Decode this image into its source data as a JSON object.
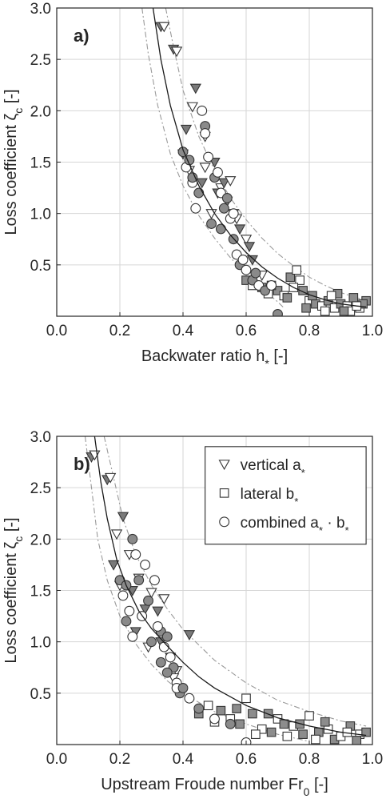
{
  "chart_data": [
    {
      "type": "scatter",
      "panel_label": "a)",
      "xlabel": "Backwater ratio h",
      "xlabel_sub": "*",
      "xlabel_unit": "[-]",
      "ylabel": "Loss coefficient ζ",
      "ylabel_sub": "c",
      "ylabel_unit": "[-]",
      "xlim": [
        0,
        1
      ],
      "ylim": [
        0,
        3
      ],
      "xticks": [
        "0.0",
        "0.2",
        "0.4",
        "0.6",
        "0.8",
        "1.0"
      ],
      "yticks": [
        "0.5",
        "1.0",
        "1.5",
        "2.0",
        "2.5",
        "3.0"
      ],
      "grid": true,
      "fit_curve": {
        "style": "solid black",
        "x": [
          0.305,
          0.33,
          0.36,
          0.4,
          0.45,
          0.5,
          0.55,
          0.6,
          0.65,
          0.7,
          0.75,
          0.8,
          0.85,
          0.9,
          0.95,
          0.98
        ],
        "y": [
          3.0,
          2.5,
          2.05,
          1.62,
          1.27,
          1.0,
          0.79,
          0.62,
          0.48,
          0.37,
          0.28,
          0.21,
          0.16,
          0.12,
          0.1,
          0.09
        ]
      },
      "bound_upper": {
        "style": "dash-dot grey",
        "x": [
          0.345,
          0.37,
          0.4,
          0.45,
          0.5,
          0.55,
          0.6,
          0.65,
          0.7,
          0.75,
          0.8,
          0.85,
          0.9,
          0.95,
          0.98
        ],
        "y": [
          3.0,
          2.62,
          2.2,
          1.75,
          1.42,
          1.15,
          0.94,
          0.76,
          0.61,
          0.49,
          0.38,
          0.3,
          0.23,
          0.18,
          0.16
        ]
      },
      "bound_lower": {
        "style": "dash-dot grey",
        "x": [
          0.27,
          0.29,
          0.32,
          0.36,
          0.4,
          0.45,
          0.5,
          0.55,
          0.6,
          0.65,
          0.7,
          0.72
        ],
        "y": [
          3.0,
          2.55,
          2.05,
          1.58,
          1.27,
          0.98,
          0.76,
          0.57,
          0.41,
          0.27,
          0.14,
          0.08
        ]
      },
      "series": [
        {
          "name": "vertical a*",
          "marker": "triangle",
          "x": [
            0.33,
            0.34,
            0.37,
            0.38,
            0.41,
            0.43,
            0.44,
            0.47,
            0.5,
            0.52,
            0.54,
            0.56,
            0.58,
            0.6,
            0.62,
            0.65,
            0.4,
            0.42,
            0.46,
            0.49,
            0.53,
            0.57,
            0.61,
            0.47,
            0.51,
            0.55
          ],
          "y": [
            2.82,
            2.82,
            2.6,
            2.58,
            1.82,
            2.04,
            2.22,
            1.75,
            1.5,
            1.25,
            1.12,
            1.0,
            0.85,
            0.75,
            0.55,
            0.4,
            1.58,
            1.42,
            1.3,
            1.0,
            1.3,
            0.95,
            0.68,
            1.45,
            1.2,
            1.32
          ]
        },
        {
          "name": "lateral b*",
          "marker": "square",
          "x": [
            0.6,
            0.62,
            0.65,
            0.67,
            0.7,
            0.72,
            0.74,
            0.76,
            0.78,
            0.8,
            0.82,
            0.84,
            0.86,
            0.88,
            0.9,
            0.92,
            0.94,
            0.96,
            0.98,
            0.68,
            0.73,
            0.77,
            0.81,
            0.85,
            0.89,
            0.93,
            0.97,
            0.75,
            0.79,
            0.87,
            0.91,
            0.95
          ],
          "y": [
            0.35,
            0.3,
            0.28,
            0.22,
            0.25,
            0.2,
            0.38,
            0.45,
            0.25,
            0.15,
            0.12,
            0.1,
            0.15,
            0.08,
            0.12,
            0.1,
            0.18,
            0.08,
            0.15,
            0.3,
            0.18,
            0.35,
            0.2,
            0.05,
            0.22,
            0.05,
            0.12,
            0.28,
            0.08,
            0.2,
            0.05,
            0.1
          ]
        },
        {
          "name": "combined a* · b*",
          "marker": "circle",
          "x": [
            0.4,
            0.41,
            0.42,
            0.43,
            0.45,
            0.46,
            0.47,
            0.48,
            0.5,
            0.52,
            0.53,
            0.55,
            0.56,
            0.57,
            0.58,
            0.6,
            0.62,
            0.64,
            0.66,
            0.68,
            0.7,
            0.44,
            0.49,
            0.51,
            0.54,
            0.59,
            0.43,
            0.47,
            0.52,
            0.56,
            0.63
          ],
          "y": [
            1.6,
            1.45,
            1.52,
            1.3,
            1.2,
            2.0,
            1.85,
            1.55,
            1.35,
            1.2,
            1.05,
            0.95,
            0.75,
            0.6,
            0.5,
            0.45,
            0.35,
            0.3,
            0.25,
            0.3,
            0.02,
            1.05,
            0.9,
            1.4,
            1.15,
            0.55,
            1.35,
            1.78,
            0.85,
            1.0,
            0.42
          ]
        }
      ]
    },
    {
      "type": "scatter",
      "panel_label": "b)",
      "xlabel": "Upstream Froude number Fr",
      "xlabel_sub": "0",
      "xlabel_unit": "[-]",
      "ylabel": "Loss coefficient ζ",
      "ylabel_sub": "c",
      "ylabel_unit": "[-]",
      "xlim": [
        0,
        1
      ],
      "ylim": [
        0,
        3
      ],
      "xticks": [
        "0.0",
        "0.2",
        "0.4",
        "0.6",
        "0.8",
        "1.0"
      ],
      "yticks": [
        "0.5",
        "1.0",
        "1.5",
        "2.0",
        "2.5",
        "3.0"
      ],
      "grid": true,
      "legend_position": "top-right",
      "legend": [
        {
          "marker": "triangle",
          "label": "vertical a",
          "sub": "*",
          "rest": ""
        },
        {
          "marker": "square",
          "label": "lateral b",
          "sub": "*",
          "rest": ""
        },
        {
          "marker": "circle",
          "label": "combined a",
          "sub": "*",
          "rest": " · b",
          "sub2": "*"
        }
      ],
      "fit_curve": {
        "style": "solid black",
        "x": [
          0.12,
          0.14,
          0.16,
          0.19,
          0.22,
          0.26,
          0.3,
          0.35,
          0.4,
          0.45,
          0.5,
          0.6,
          0.7,
          0.8,
          0.9,
          0.98
        ],
        "y": [
          3.0,
          2.55,
          2.2,
          1.8,
          1.55,
          1.3,
          1.13,
          0.96,
          0.8,
          0.66,
          0.55,
          0.38,
          0.26,
          0.18,
          0.12,
          0.09
        ]
      },
      "bound_upper": {
        "style": "dash-dot grey",
        "x": [
          0.15,
          0.18,
          0.21,
          0.25,
          0.3,
          0.35,
          0.4,
          0.5,
          0.6,
          0.7,
          0.8,
          0.9,
          0.98
        ],
        "y": [
          3.0,
          2.6,
          2.2,
          1.85,
          1.55,
          1.32,
          1.12,
          0.82,
          0.6,
          0.43,
          0.32,
          0.23,
          0.18
        ]
      },
      "bound_lower": {
        "style": "dash-dot grey",
        "x": [
          0.09,
          0.11,
          0.13,
          0.16,
          0.2,
          0.25,
          0.3,
          0.35,
          0.4,
          0.5,
          0.6,
          0.7,
          0.8
        ],
        "y": [
          3.0,
          2.5,
          2.0,
          1.6,
          1.25,
          0.98,
          0.78,
          0.62,
          0.5,
          0.32,
          0.2,
          0.1,
          0.03
        ]
      },
      "series": [
        {
          "name": "vertical a*",
          "marker": "triangle",
          "x": [
            0.11,
            0.12,
            0.16,
            0.17,
            0.18,
            0.19,
            0.21,
            0.23,
            0.24,
            0.26,
            0.28,
            0.3,
            0.32,
            0.34,
            0.36,
            0.38,
            0.42,
            0.2,
            0.25,
            0.29,
            0.33,
            0.37
          ],
          "y": [
            2.8,
            2.82,
            2.58,
            2.6,
            1.75,
            2.05,
            2.22,
            1.85,
            1.5,
            1.62,
            1.32,
            1.48,
            1.3,
            1.42,
            0.85,
            0.72,
            1.07,
            1.55,
            1.1,
            0.95,
            1.0,
            0.65
          ]
        },
        {
          "name": "lateral b*",
          "marker": "square",
          "x": [
            0.45,
            0.48,
            0.52,
            0.55,
            0.58,
            0.6,
            0.62,
            0.65,
            0.68,
            0.7,
            0.72,
            0.75,
            0.78,
            0.8,
            0.83,
            0.86,
            0.88,
            0.9,
            0.93,
            0.96,
            0.98,
            0.5,
            0.57,
            0.63,
            0.67,
            0.73,
            0.77,
            0.82,
            0.85,
            0.92,
            0.95
          ],
          "y": [
            0.3,
            0.38,
            0.33,
            0.25,
            0.2,
            0.45,
            0.3,
            0.15,
            0.12,
            0.25,
            0.2,
            0.18,
            0.1,
            0.28,
            0.12,
            0.15,
            0.05,
            0.08,
            0.18,
            0.1,
            0.12,
            0.22,
            0.35,
            0.1,
            0.3,
            0.08,
            0.2,
            0.05,
            0.22,
            0.12,
            0.04
          ]
        },
        {
          "name": "combined a* · b*",
          "marker": "circle",
          "x": [
            0.2,
            0.21,
            0.22,
            0.23,
            0.24,
            0.25,
            0.26,
            0.27,
            0.29,
            0.31,
            0.33,
            0.34,
            0.35,
            0.36,
            0.37,
            0.38,
            0.39,
            0.42,
            0.45,
            0.5,
            0.55,
            0.6,
            0.22,
            0.28,
            0.3,
            0.32,
            0.35,
            0.38,
            0.4,
            0.24,
            0.33
          ],
          "y": [
            1.6,
            1.45,
            1.55,
            1.3,
            2.0,
            1.85,
            1.6,
            1.25,
            1.4,
            1.6,
            1.1,
            0.95,
            1.05,
            0.85,
            0.75,
            0.6,
            0.5,
            0.45,
            0.35,
            0.25,
            0.2,
            0.02,
            1.2,
            1.75,
            1.0,
            1.15,
            0.7,
            0.55,
            0.55,
            1.05,
            0.8
          ]
        }
      ]
    }
  ]
}
